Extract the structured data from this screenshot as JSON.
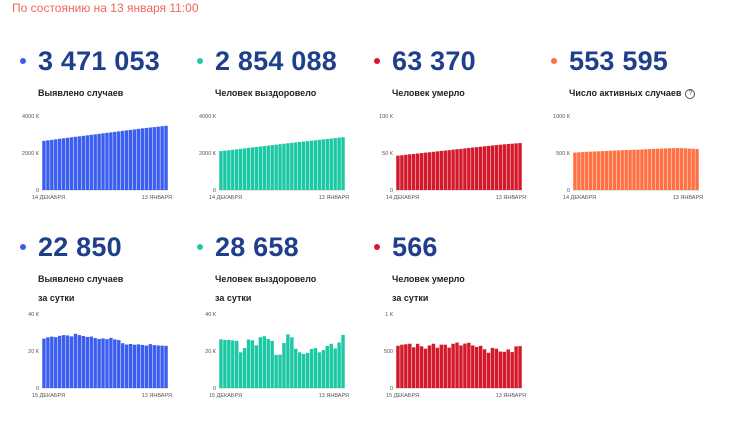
{
  "header": {
    "timestamp": "По состоянию на 13 января 11:00"
  },
  "help_icon": "question-circle-icon",
  "panels": [
    {
      "value": "3 471 053",
      "label_line1": "Выявлено случаев",
      "label_line2": "",
      "color": "#3b5ef0",
      "dot_color": "#3b5ef0",
      "has_help": false
    },
    {
      "value": "2 854 088",
      "label_line1": "Человек выздоровело",
      "label_line2": "",
      "color": "#1dc9a4",
      "dot_color": "#1dc9a4",
      "has_help": false
    },
    {
      "value": "63 370",
      "label_line1": "Человек умерло",
      "label_line2": "",
      "color": "#d4192a",
      "dot_color": "#d4192a",
      "has_help": false
    },
    {
      "value": "553 595",
      "label_line1": "Число активных случаев",
      "label_line2": "",
      "color": "#ff7043",
      "dot_color": "#ff7043",
      "has_help": true
    },
    {
      "value": "22 850",
      "label_line1": "Выявлено случаев",
      "label_line2": "за сутки",
      "color": "#3b5ef0",
      "dot_color": "#3b5ef0",
      "has_help": false
    },
    {
      "value": "28 658",
      "label_line1": "Человек выздоровело",
      "label_line2": "за сутки",
      "color": "#1dc9a4",
      "dot_color": "#1dc9a4",
      "has_help": false
    },
    {
      "value": "566",
      "label_line1": "Человек умерло",
      "label_line2": "за сутки",
      "color": "#d4192a",
      "dot_color": "#d4192a",
      "has_help": false
    }
  ],
  "chart_data": [
    {
      "type": "bar",
      "x_start": "14 ДЕКАБРЯ",
      "x_end": "13 ЯНВАРЯ",
      "yticks": [
        {
          "v": 0,
          "label": "0"
        },
        {
          "v": 2000,
          "label": "2000 К"
        },
        {
          "v": 4000,
          "label": "4000 К"
        }
      ],
      "ylim": [
        0,
        4000
      ],
      "values": [
        2656,
        2684,
        2712,
        2739,
        2767,
        2794,
        2821,
        2849,
        2876,
        2902,
        2928,
        2955,
        2982,
        3009,
        3036,
        3063,
        3090,
        3116,
        3143,
        3170,
        3197,
        3223,
        3250,
        3276,
        3303,
        3330,
        3355,
        3379,
        3401,
        3425,
        3448,
        3471
      ]
    },
    {
      "type": "bar",
      "x_start": "14 ДЕКАБРЯ",
      "x_end": "13 ЯНВАРЯ",
      "yticks": [
        {
          "v": 0,
          "label": "0"
        },
        {
          "v": 2000,
          "label": "2000 К"
        },
        {
          "v": 4000,
          "label": "4000 К"
        }
      ],
      "ylim": [
        0,
        4000
      ],
      "values": [
        2104,
        2127,
        2150,
        2174,
        2200,
        2226,
        2251,
        2276,
        2301,
        2325,
        2350,
        2374,
        2400,
        2425,
        2451,
        2476,
        2500,
        2526,
        2550,
        2573,
        2595,
        2620,
        2644,
        2666,
        2690,
        2713,
        2735,
        2758,
        2781,
        2806,
        2830,
        2854
      ]
    },
    {
      "type": "bar",
      "x_start": "14 ДЕКАБРЯ",
      "x_end": "13 ЯНВАРЯ",
      "yticks": [
        {
          "v": 0,
          "label": "0"
        },
        {
          "v": 50,
          "label": "50 К"
        },
        {
          "v": 100,
          "label": "100 К"
        }
      ],
      "ylim": [
        0,
        100
      ],
      "values": [
        46.4,
        47.0,
        47.6,
        48.2,
        48.7,
        49.3,
        49.9,
        50.5,
        51.0,
        51.6,
        52.2,
        52.8,
        53.3,
        53.9,
        54.5,
        55.1,
        55.6,
        56.2,
        56.8,
        57.4,
        57.9,
        58.5,
        59.1,
        59.6,
        60.2,
        60.7,
        61.2,
        61.7,
        62.2,
        62.6,
        63.0,
        63.4
      ]
    },
    {
      "type": "bar",
      "x_start": "14 ДЕКАБРЯ",
      "x_end": "13 ЯНВАРЯ",
      "yticks": [
        {
          "v": 0,
          "label": "0"
        },
        {
          "v": 500,
          "label": "500 К"
        },
        {
          "v": 1000,
          "label": "1000 К"
        }
      ],
      "ylim": [
        0,
        1000
      ],
      "values": [
        506,
        510,
        513,
        516,
        518,
        521,
        523,
        526,
        528,
        531,
        533,
        536,
        538,
        540,
        542,
        544,
        546,
        548,
        551,
        553,
        556,
        558,
        560,
        562,
        564,
        565,
        566,
        565,
        563,
        560,
        557,
        554
      ]
    },
    {
      "type": "bar",
      "x_start": "15 ДЕКАБРЯ",
      "x_end": "13 ЯНВАРЯ",
      "yticks": [
        {
          "v": 0,
          "label": "0"
        },
        {
          "v": 20,
          "label": "20 К"
        },
        {
          "v": 40,
          "label": "40 К"
        }
      ],
      "ylim": [
        0,
        40
      ],
      "values": [
        26.7,
        27.4,
        27.8,
        27.5,
        28.2,
        28.6,
        28.4,
        27.9,
        29.3,
        28.6,
        28.1,
        27.6,
        27.8,
        27.0,
        26.5,
        26.8,
        26.4,
        27.1,
        26.3,
        25.9,
        24.2,
        23.5,
        23.8,
        23.4,
        23.6,
        23.3,
        22.9,
        23.7,
        23.2,
        23.0,
        22.9,
        22.8
      ]
    },
    {
      "type": "bar",
      "x_start": "15 ДЕКАБРЯ",
      "x_end": "13 ЯНВАРЯ",
      "yticks": [
        {
          "v": 0,
          "label": "0"
        },
        {
          "v": 20,
          "label": "20 К"
        },
        {
          "v": 40,
          "label": "40 К"
        }
      ],
      "ylim": [
        0,
        40
      ],
      "values": [
        26.3,
        26.0,
        26.0,
        25.7,
        25.5,
        19.3,
        21.6,
        26.2,
        25.8,
        23.1,
        27.5,
        28.0,
        26.5,
        25.5,
        17.9,
        18.0,
        24.3,
        29.0,
        27.4,
        21.2,
        19.3,
        18.4,
        19.0,
        21.1,
        21.6,
        19.3,
        20.5,
        22.8,
        23.9,
        21.4,
        24.6,
        28.7
      ]
    },
    {
      "type": "bar",
      "x_start": "15 ДЕКАБРЯ",
      "x_end": "13 ЯНВАРЯ",
      "yticks": [
        {
          "v": 0,
          "label": "0"
        },
        {
          "v": 500,
          "label": "500"
        },
        {
          "v": 1000,
          "label": "1 К"
        }
      ],
      "ylim": [
        0,
        1000
      ],
      "values": [
        571,
        585,
        591,
        598,
        550,
        597,
        563,
        531,
        575,
        598,
        544,
        586,
        585,
        546,
        598,
        614,
        575,
        600,
        611,
        576,
        555,
        570,
        523,
        476,
        542,
        531,
        493,
        489,
        521,
        485,
        563,
        566
      ]
    }
  ]
}
